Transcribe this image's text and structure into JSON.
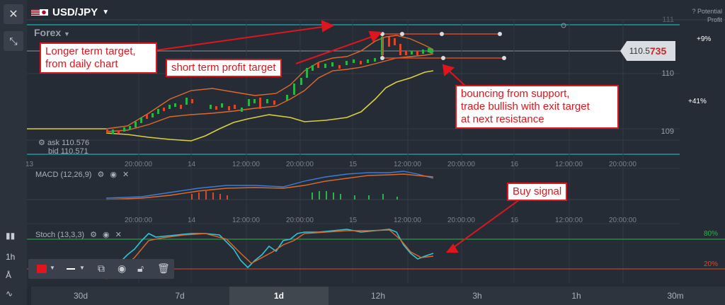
{
  "window": {
    "close_icon": "close-icon",
    "collapse_icon": "collapse-icon"
  },
  "asset": {
    "name": "USD/JPY",
    "category": "Forex"
  },
  "potential_profit": {
    "label_line1": "Potential",
    "label_line2": "Profit",
    "pct_top": "+9%",
    "pct_mid": "+41%"
  },
  "price_axis": {
    "p111": "111",
    "p110": "110",
    "p109": "109"
  },
  "current_price": {
    "base": "110.5",
    "highlight": "735"
  },
  "quotes": {
    "ask": "ask 110.576",
    "bid": "bid 110.571"
  },
  "time_axis": [
    "13",
    "20:00:00",
    "14",
    "12:00:00",
    "20:00:00",
    "15",
    "12:00:00",
    "20:00:00",
    "16",
    "12:00:00",
    "20:00:00"
  ],
  "indicators": {
    "macd": {
      "label": "MACD (12,26,9)"
    },
    "stoch": {
      "label": "Stoch (13,3,3)",
      "upper": "80%",
      "lower": "20%"
    }
  },
  "annotations": {
    "longer_target": "Longer term target,\nfrom daily chart",
    "short_target": "short term profit target",
    "bouncing": "bouncing from support,\ntrade bullish with exit target\nat next resistance",
    "buy_signal": "Buy signal"
  },
  "left_tools": {
    "timeframe": "1h"
  },
  "timeframes": [
    "30d",
    "7d",
    "1d",
    "12h",
    "3h",
    "1h",
    "30m"
  ],
  "active_timeframe": "1d",
  "colors": {
    "accent": "#e0151d",
    "candle_up": "#2bb34a",
    "candle_down": "#d9482b",
    "band": "#e0692a",
    "ma": "#dccf3c",
    "macd": "#3b7dd8",
    "stoch_k": "#2ec4d6",
    "stoch_d": "#e0692a"
  }
}
